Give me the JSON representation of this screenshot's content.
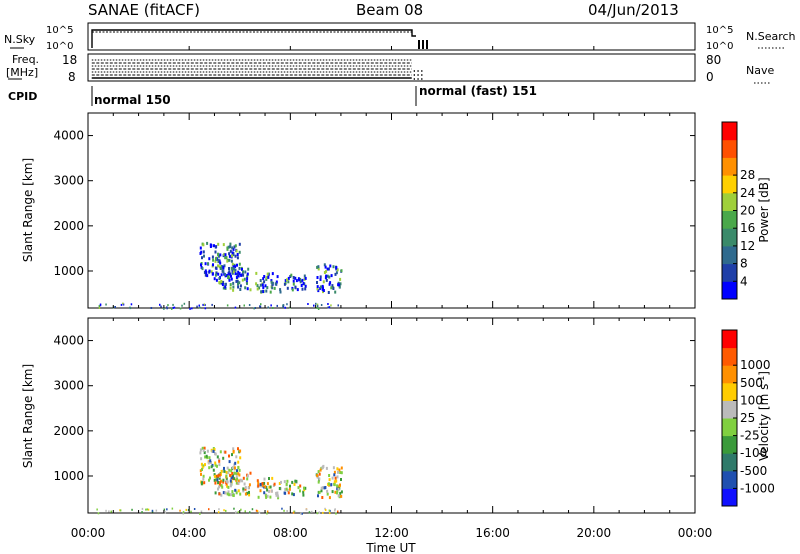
{
  "header": {
    "station": "SANAE (fitACF)",
    "beam": "Beam 08",
    "date": "04/Jun/2013"
  },
  "status_panel": {
    "nsky_label": "N.Sky",
    "nsearch_label": "N.Search",
    "freq_label_1": "Freq.",
    "freq_label_2": "[MHz]",
    "nave_label": "Nave",
    "cpid_label": "CPID",
    "noise_tick_top": "10^5",
    "noise_tick_bottom": "10^0",
    "freq_tick_top": "18",
    "freq_tick_bottom": "8",
    "nave_tick_top": "80",
    "nave_tick_bottom": "0",
    "cpid_segments": [
      {
        "label": "normal 150",
        "start_hour": 0.0,
        "end_hour": 12.8
      },
      {
        "label": "normal (fast) 151",
        "start_hour": 12.8,
        "end_hour": 13.3
      }
    ]
  },
  "colors": {
    "power_scale": [
      "#0000ff",
      "#1f3fa8",
      "#2f6a8e",
      "#3a8a6a",
      "#4aa84a",
      "#9fcf3a",
      "#ffd000",
      "#ff9000",
      "#ff5000",
      "#ff0000"
    ],
    "velocity_scale": [
      "#1010ff",
      "#2050b0",
      "#2f7a6a",
      "#3a9a3a",
      "#80d040",
      "#bbbbbb",
      "#ffcc00",
      "#ff9000",
      "#ff5a00",
      "#ff0000"
    ]
  },
  "chart_data": [
    {
      "type": "heatmap",
      "name": "power",
      "ylabel": "Slant Range [km]",
      "colorbar_label": "Power [dB]",
      "colorbar_ticks": [
        "4",
        "8",
        "12",
        "16",
        "20",
        "24",
        "28"
      ],
      "x_ticks": [
        "00:00",
        "04:00",
        "08:00",
        "12:00",
        "16:00",
        "20:00",
        "00:00"
      ],
      "y_ticks": [
        "1000",
        "2000",
        "3000",
        "4000"
      ],
      "ylim": [
        180,
        4500
      ],
      "xlim_hours": [
        0,
        24
      ],
      "regions": [
        {
          "t0": 4.4,
          "t1": 6.0,
          "r0": 850,
          "r1": 1650
        },
        {
          "t0": 5.0,
          "t1": 6.4,
          "r0": 600,
          "r1": 1100
        },
        {
          "t0": 6.6,
          "t1": 7.6,
          "r0": 550,
          "r1": 1000
        },
        {
          "t0": 7.7,
          "t1": 8.6,
          "r0": 600,
          "r1": 950
        },
        {
          "t0": 9.0,
          "t1": 10.0,
          "r0": 550,
          "r1": 1200
        },
        {
          "t0": 0.3,
          "t1": 10.0,
          "r0": 180,
          "r1": 300
        }
      ]
    },
    {
      "type": "heatmap",
      "name": "velocity",
      "ylabel": "Slant Range [km]",
      "xlabel": "Time UT",
      "colorbar_label": "Velocity [m s^-1]",
      "colorbar_ticks": [
        "-1000",
        "-500",
        "-100",
        "-25",
        "25",
        "100",
        "500",
        "1000"
      ],
      "x_ticks": [
        "00:00",
        "04:00",
        "08:00",
        "12:00",
        "16:00",
        "20:00",
        "00:00"
      ],
      "y_ticks": [
        "1000",
        "2000",
        "3000",
        "4000"
      ],
      "ylim": [
        180,
        4500
      ],
      "xlim_hours": [
        0,
        24
      ],
      "regions": [
        {
          "t0": 4.4,
          "t1": 6.0,
          "r0": 850,
          "r1": 1650
        },
        {
          "t0": 5.0,
          "t1": 6.4,
          "r0": 600,
          "r1": 1100
        },
        {
          "t0": 6.6,
          "t1": 7.6,
          "r0": 550,
          "r1": 1000
        },
        {
          "t0": 7.7,
          "t1": 8.6,
          "r0": 600,
          "r1": 950
        },
        {
          "t0": 9.0,
          "t1": 10.0,
          "r0": 550,
          "r1": 1250
        },
        {
          "t0": 0.3,
          "t1": 10.0,
          "r0": 180,
          "r1": 300
        }
      ]
    }
  ]
}
